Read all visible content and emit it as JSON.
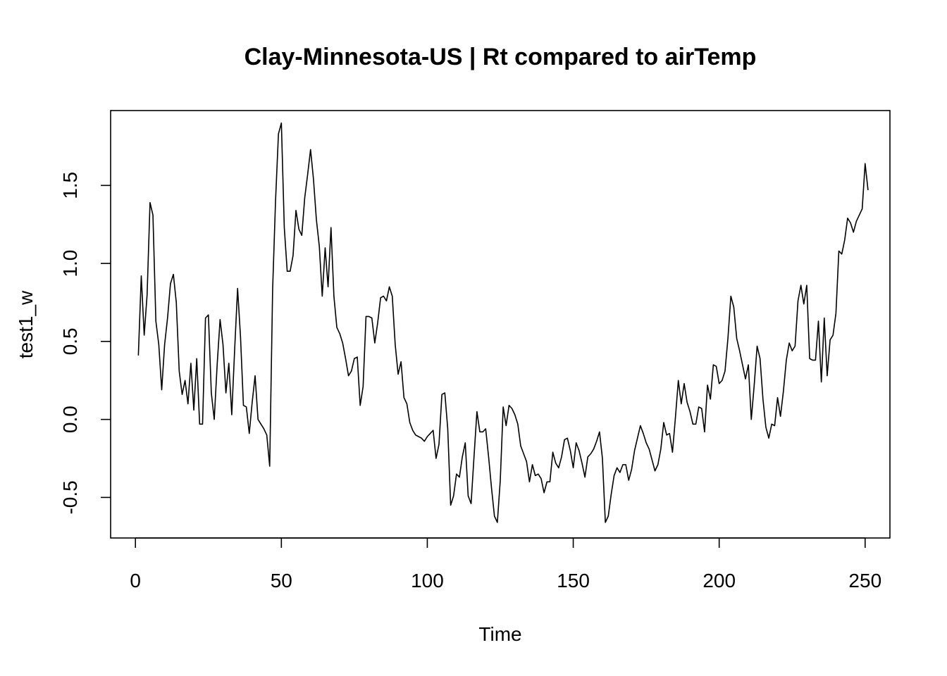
{
  "chart_data": {
    "type": "line",
    "title": "Clay-Minnesota-US | Rt compared to airTemp",
    "xlabel": "Time",
    "ylabel": "test1_w",
    "xlim": [
      -8.5,
      258.5
    ],
    "ylim": [
      -0.76,
      1.98
    ],
    "x_ticks": [
      0,
      50,
      100,
      150,
      200,
      250
    ],
    "y_ticks": [
      -0.5,
      0.0,
      0.5,
      1.0,
      1.5
    ],
    "x_tick_labels": [
      "0",
      "50",
      "100",
      "150",
      "200",
      "250"
    ],
    "y_tick_labels": [
      "-0.5",
      "0.0",
      "0.5",
      "1.0",
      "1.5"
    ],
    "grid": false,
    "line_color": "#000000",
    "series": [
      {
        "x_start": 1,
        "values": [
          0.41,
          0.92,
          0.54,
          0.8,
          1.39,
          1.31,
          0.63,
          0.48,
          0.19,
          0.48,
          0.65,
          0.87,
          0.93,
          0.75,
          0.31,
          0.16,
          0.25,
          0.1,
          0.36,
          0.06,
          0.39,
          -0.03,
          -0.03,
          0.65,
          0.67,
          0.17,
          0.0,
          0.35,
          0.64,
          0.48,
          0.17,
          0.36,
          0.03,
          0.45,
          0.84,
          0.53,
          0.09,
          0.08,
          -0.09,
          0.11,
          0.28,
          0.0,
          -0.03,
          -0.06,
          -0.1,
          -0.3,
          0.83,
          1.4,
          1.83,
          1.9,
          1.23,
          0.95,
          0.95,
          1.05,
          1.34,
          1.22,
          1.18,
          1.42,
          1.57,
          1.73,
          1.54,
          1.28,
          1.11,
          0.79,
          1.1,
          0.85,
          1.23,
          0.79,
          0.59,
          0.55,
          0.49,
          0.39,
          0.28,
          0.31,
          0.39,
          0.4,
          0.09,
          0.21,
          0.66,
          0.66,
          0.65,
          0.49,
          0.62,
          0.78,
          0.79,
          0.76,
          0.85,
          0.79,
          0.48,
          0.29,
          0.37,
          0.14,
          0.1,
          -0.02,
          -0.07,
          -0.1,
          -0.11,
          -0.12,
          -0.14,
          -0.11,
          -0.09,
          -0.07,
          -0.25,
          -0.16,
          0.16,
          0.17,
          -0.06,
          -0.55,
          -0.49,
          -0.35,
          -0.37,
          -0.24,
          -0.15,
          -0.49,
          -0.54,
          -0.24,
          0.05,
          -0.08,
          -0.08,
          -0.06,
          -0.24,
          -0.44,
          -0.62,
          -0.66,
          -0.39,
          0.08,
          -0.04,
          0.09,
          0.07,
          0.03,
          -0.03,
          -0.17,
          -0.22,
          -0.27,
          -0.4,
          -0.29,
          -0.36,
          -0.35,
          -0.38,
          -0.47,
          -0.4,
          -0.4,
          -0.21,
          -0.28,
          -0.31,
          -0.24,
          -0.13,
          -0.12,
          -0.2,
          -0.31,
          -0.15,
          -0.2,
          -0.28,
          -0.37,
          -0.24,
          -0.22,
          -0.19,
          -0.14,
          -0.08,
          -0.25,
          -0.66,
          -0.62,
          -0.48,
          -0.36,
          -0.31,
          -0.34,
          -0.29,
          -0.29,
          -0.39,
          -0.32,
          -0.2,
          -0.12,
          -0.04,
          -0.09,
          -0.15,
          -0.19,
          -0.26,
          -0.33,
          -0.29,
          -0.19,
          -0.02,
          -0.1,
          -0.09,
          -0.21,
          0.01,
          0.25,
          0.1,
          0.23,
          0.11,
          0.05,
          -0.03,
          -0.03,
          0.08,
          0.07,
          -0.08,
          0.22,
          0.13,
          0.35,
          0.34,
          0.23,
          0.25,
          0.31,
          0.52,
          0.79,
          0.72,
          0.52,
          0.44,
          0.35,
          0.26,
          0.35,
          0.0,
          0.22,
          0.47,
          0.39,
          0.13,
          -0.05,
          -0.12,
          -0.03,
          -0.04,
          0.14,
          0.02,
          0.18,
          0.38,
          0.49,
          0.44,
          0.47,
          0.76,
          0.86,
          0.74,
          0.86,
          0.39,
          0.38,
          0.38,
          0.63,
          0.24,
          0.65,
          0.28,
          0.51,
          0.54,
          0.68,
          1.08,
          1.06,
          1.15,
          1.29,
          1.26,
          1.2,
          1.27,
          1.31,
          1.35,
          1.64,
          1.47
        ]
      }
    ]
  }
}
